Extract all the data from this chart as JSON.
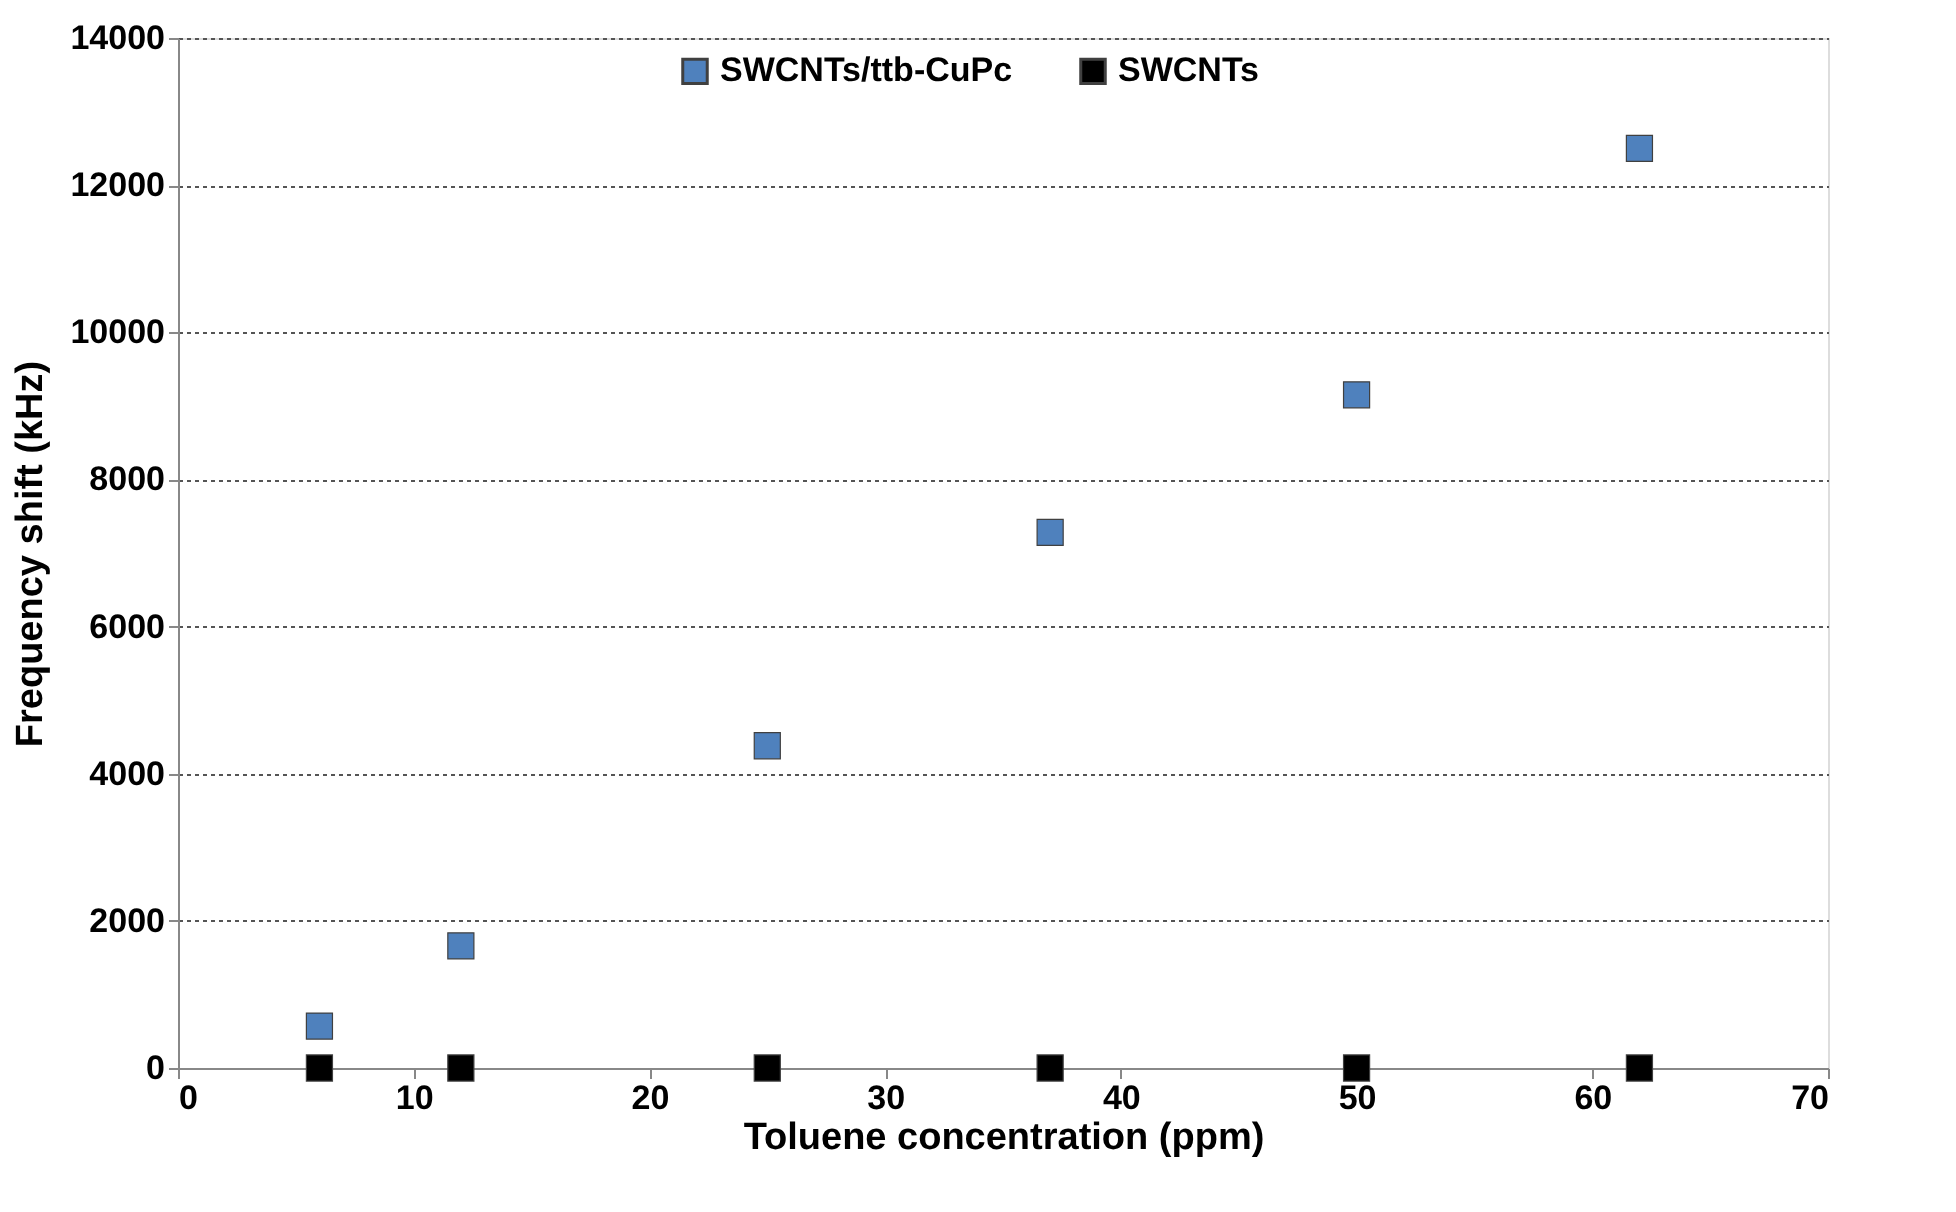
{
  "chart_data": {
    "type": "scatter",
    "xlabel": "Toluene concentration (ppm)",
    "ylabel": "Frequency shift (kHz)",
    "x": [
      6,
      12,
      25,
      37,
      50,
      62
    ],
    "series": [
      {
        "name": "SWCNTs/ttb-CuPc",
        "color": "#4f81bd",
        "values": [
          570,
          1660,
          4380,
          7280,
          9150,
          12500
        ]
      },
      {
        "name": "SWCNTs",
        "color": "#000000",
        "values": [
          0,
          0,
          0,
          0,
          0,
          0
        ]
      }
    ],
    "xlim": [
      0,
      70
    ],
    "xticks": [
      0,
      10,
      20,
      30,
      40,
      50,
      60,
      70
    ],
    "ylim": [
      0,
      14000
    ],
    "yticks": [
      0,
      2000,
      4000,
      6000,
      8000,
      10000,
      12000,
      14000
    ],
    "grid": "y",
    "legend": "top right",
    "marker": "square"
  }
}
